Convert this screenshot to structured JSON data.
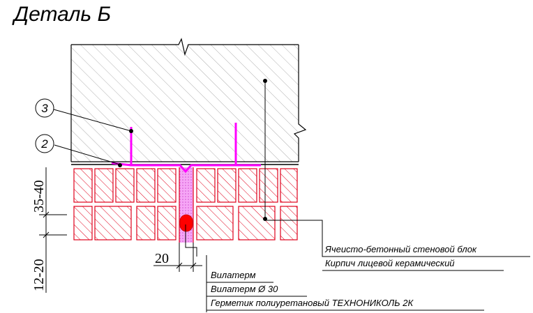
{
  "title": "Деталь Б",
  "markers": [
    {
      "id": "3",
      "text": "3"
    },
    {
      "id": "2",
      "text": "2"
    }
  ],
  "dimensions": {
    "d1": "35-40",
    "d2": "12-20",
    "d3": "20"
  },
  "callouts": {
    "aerated_block": "Ячеисто-бетонный стеновой блок",
    "facing_brick": "Кирпич лицевой керамический",
    "vilaterm": "Вилатерм",
    "vilaterm_30": "Вилатерм Ø 30",
    "sealant": "Герметик полиуретановый ТЕХНОНИКОЛЬ 2К"
  },
  "colors": {
    "brick": "#e0001b",
    "anchor": "#ff00ff",
    "seal": "#ff0000",
    "hatch": "#9a9a9a",
    "line": "#000000"
  }
}
